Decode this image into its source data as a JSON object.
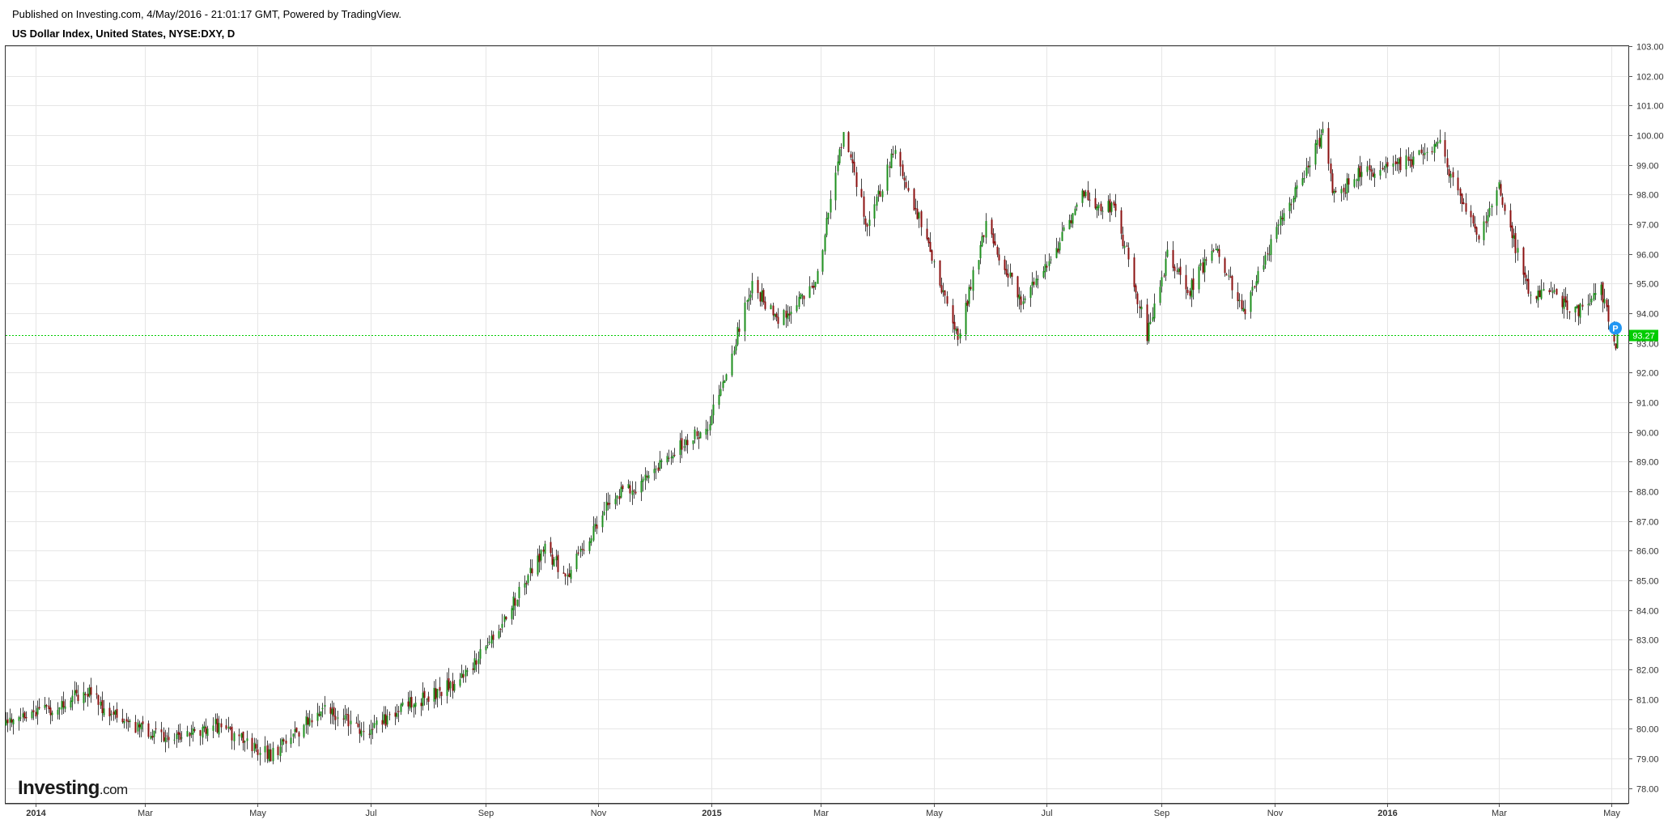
{
  "header": {
    "published": "Published on Investing.com, 4/May/2016 - 21:01:17 GMT, Powered by TradingView.",
    "title": "US Dollar Index, United States, NYSE:DXY, D"
  },
  "logo": {
    "brand": "Investing",
    "suffix": ".com"
  },
  "colors": {
    "up": "#1e8f1e",
    "down": "#8b1010",
    "wick": "#444444",
    "grid": "#e6e6e6",
    "last_price": "#00cc00",
    "marker": "#2196f3"
  },
  "chart_data": {
    "type": "candlestick",
    "title": "US Dollar Index, United States, NYSE:DXY, D",
    "interval": "D",
    "xlabel": "",
    "ylabel": "",
    "ylim": [
      77.5,
      103.0
    ],
    "y_ticks": [
      "78.00",
      "79.00",
      "80.00",
      "81.00",
      "82.00",
      "83.00",
      "84.00",
      "85.00",
      "86.00",
      "87.00",
      "88.00",
      "89.00",
      "90.00",
      "91.00",
      "92.00",
      "93.00",
      "94.00",
      "95.00",
      "96.00",
      "97.00",
      "98.00",
      "99.00",
      "100.00",
      "101.00",
      "102.00",
      "103.00"
    ],
    "x_ticks": [
      {
        "label": "2014",
        "date": "2014-01-01",
        "bold": true
      },
      {
        "label": "Mar",
        "date": "2014-03-01",
        "bold": false
      },
      {
        "label": "May",
        "date": "2014-05-01",
        "bold": false
      },
      {
        "label": "Jul",
        "date": "2014-07-01",
        "bold": false
      },
      {
        "label": "Sep",
        "date": "2014-09-01",
        "bold": false
      },
      {
        "label": "Nov",
        "date": "2014-11-01",
        "bold": false
      },
      {
        "label": "2015",
        "date": "2015-01-01",
        "bold": true
      },
      {
        "label": "Mar",
        "date": "2015-03-01",
        "bold": false
      },
      {
        "label": "May",
        "date": "2015-05-01",
        "bold": false
      },
      {
        "label": "Jul",
        "date": "2015-07-01",
        "bold": false
      },
      {
        "label": "Sep",
        "date": "2015-09-01",
        "bold": false
      },
      {
        "label": "Nov",
        "date": "2015-11-01",
        "bold": false
      },
      {
        "label": "2016",
        "date": "2016-01-01",
        "bold": true
      },
      {
        "label": "Mar",
        "date": "2016-03-01",
        "bold": false
      },
      {
        "label": "May",
        "date": "2016-05-01",
        "bold": false
      }
    ],
    "date_range": [
      "2013-12-16",
      "2016-05-10"
    ],
    "last_price": 93.27,
    "last_price_label": "93.27",
    "marker_label": "P",
    "marker_date": "2016-05-03",
    "close_path": [
      [
        "2013-12-16",
        80.1
      ],
      [
        "2014-01-10",
        80.7
      ],
      [
        "2014-01-28",
        81.3
      ],
      [
        "2014-02-12",
        80.4
      ],
      [
        "2014-03-14",
        79.6
      ],
      [
        "2014-04-08",
        80.1
      ],
      [
        "2014-04-22",
        79.6
      ],
      [
        "2014-05-08",
        79.1
      ],
      [
        "2014-06-05",
        80.7
      ],
      [
        "2014-06-30",
        79.9
      ],
      [
        "2014-07-20",
        80.8
      ],
      [
        "2014-08-15",
        81.5
      ],
      [
        "2014-09-02",
        82.7
      ],
      [
        "2014-09-18",
        84.5
      ],
      [
        "2014-10-03",
        86.1
      ],
      [
        "2014-10-15",
        85.1
      ],
      [
        "2014-11-07",
        87.8
      ],
      [
        "2014-11-24",
        88.2
      ],
      [
        "2014-12-08",
        89.3
      ],
      [
        "2014-12-30",
        90.1
      ],
      [
        "2015-01-23",
        95.0
      ],
      [
        "2015-02-06",
        93.7
      ],
      [
        "2015-02-26",
        95.0
      ],
      [
        "2015-03-13",
        100.0
      ],
      [
        "2015-03-26",
        97.0
      ],
      [
        "2015-04-10",
        99.5
      ],
      [
        "2015-04-24",
        97.0
      ],
      [
        "2015-05-14",
        93.2
      ],
      [
        "2015-05-29",
        97.0
      ],
      [
        "2015-06-17",
        94.3
      ],
      [
        "2015-07-07",
        96.3
      ],
      [
        "2015-07-20",
        97.9
      ],
      [
        "2015-08-07",
        97.5
      ],
      [
        "2015-08-24",
        93.3
      ],
      [
        "2015-09-04",
        96.0
      ],
      [
        "2015-09-16",
        94.8
      ],
      [
        "2015-09-30",
        96.3
      ],
      [
        "2015-10-15",
        94.0
      ],
      [
        "2015-11-02",
        96.8
      ],
      [
        "2015-11-27",
        100.1
      ],
      [
        "2015-12-03",
        97.9
      ],
      [
        "2015-12-18",
        98.8
      ],
      [
        "2016-01-05",
        98.9
      ],
      [
        "2016-01-29",
        99.6
      ],
      [
        "2016-02-18",
        96.6
      ],
      [
        "2016-03-01",
        98.2
      ],
      [
        "2016-03-17",
        94.7
      ],
      [
        "2016-03-31",
        94.6
      ],
      [
        "2016-04-12",
        94.0
      ],
      [
        "2016-04-25",
        94.9
      ],
      [
        "2016-05-03",
        92.6
      ],
      [
        "2016-05-04",
        93.27
      ]
    ]
  }
}
